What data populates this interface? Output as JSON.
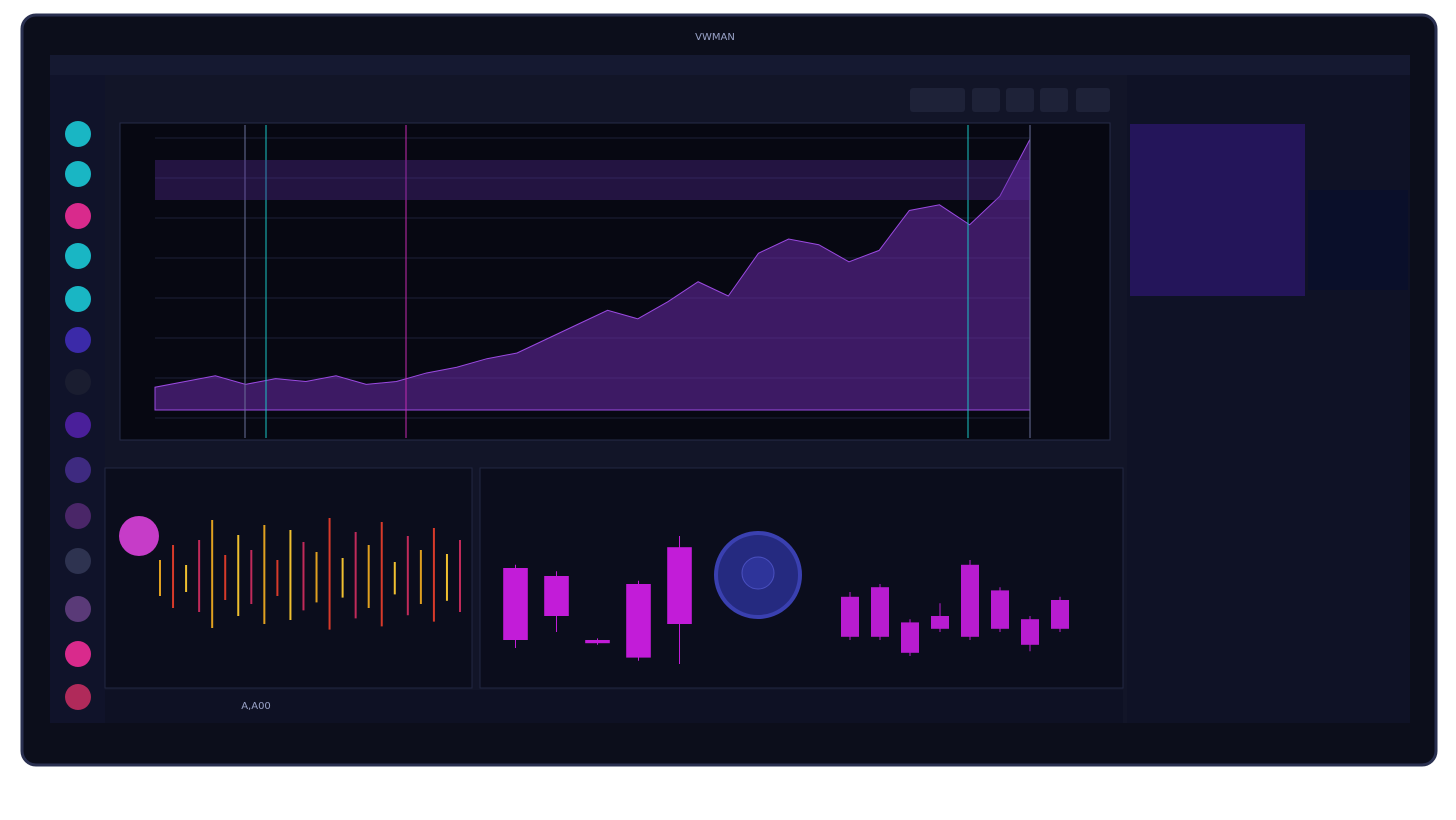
{
  "header": {
    "title": "VWMAN"
  },
  "main_chart": {
    "color": "#6a2aa8",
    "values": [
      8,
      10,
      12,
      9,
      11,
      10,
      12,
      9,
      10,
      13,
      15,
      18,
      20,
      25,
      30,
      35,
      32,
      38,
      45,
      40,
      55,
      60,
      58,
      52,
      56,
      70,
      72,
      65,
      75,
      95
    ]
  },
  "spectrum": {
    "values": [
      20,
      35,
      15,
      40,
      60,
      25,
      45,
      30,
      55,
      20,
      50,
      38,
      28,
      62,
      22,
      48,
      35,
      58,
      18,
      44,
      30,
      52,
      26,
      40
    ]
  },
  "candles_left": [
    {
      "open": 70,
      "close": 25,
      "high": 72,
      "low": 20
    },
    {
      "open": 65,
      "close": 40,
      "high": 68,
      "low": 30
    },
    {
      "open": 25,
      "close": 23,
      "high": 26,
      "low": 22
    },
    {
      "open": 60,
      "close": 14,
      "high": 62,
      "low": 12
    },
    {
      "open": 83,
      "close": 35,
      "high": 90,
      "low": 10
    }
  ],
  "candles_right": [
    {
      "open": 52,
      "close": 27,
      "high": 55,
      "low": 25
    },
    {
      "open": 58,
      "close": 27,
      "high": 60,
      "low": 25
    },
    {
      "open": 36,
      "close": 17,
      "high": 38,
      "low": 15
    },
    {
      "open": 40,
      "close": 32,
      "high": 48,
      "low": 30
    },
    {
      "open": 72,
      "close": 27,
      "high": 75,
      "low": 25
    },
    {
      "open": 56,
      "close": 32,
      "high": 58,
      "low": 30
    },
    {
      "open": 38,
      "close": 22,
      "high": 40,
      "low": 18
    },
    {
      "open": 50,
      "close": 32,
      "high": 52,
      "low": 30
    }
  ],
  "status": {
    "value": "A,A00"
  }
}
